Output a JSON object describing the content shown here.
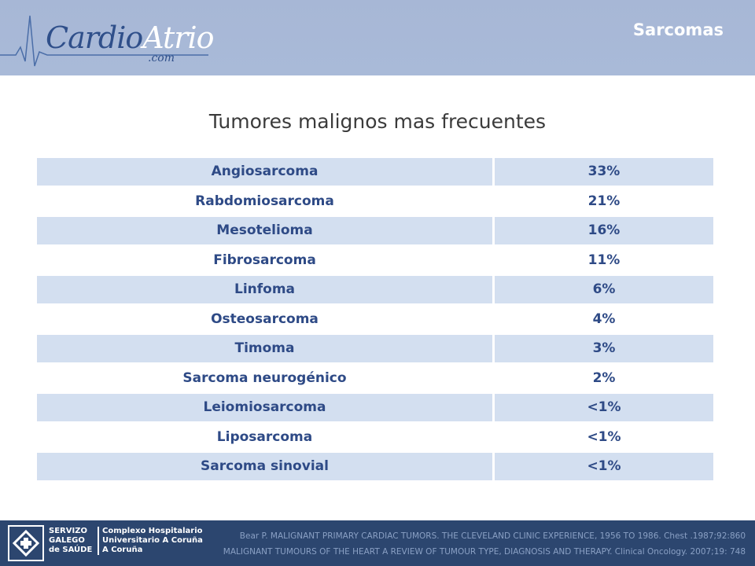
{
  "header": {
    "logo_main": "CardioAtrio",
    "logo_cardio": "Cardio",
    "logo_atrio": "Atrio",
    "logo_sub": ".com",
    "section_title": "Sarcomas"
  },
  "main": {
    "title": "Tumores malignos mas frecuentes",
    "rows": [
      {
        "name": "Angiosarcoma",
        "pct": "33%",
        "value": 33
      },
      {
        "name": "Rabdomiosarcoma",
        "pct": "21%",
        "value": 21
      },
      {
        "name": "Mesotelioma",
        "pct": "16%",
        "value": 16
      },
      {
        "name": "Fibrosarcoma",
        "pct": "11%",
        "value": 11
      },
      {
        "name": "Linfoma",
        "pct": "6%",
        "value": 6
      },
      {
        "name": "Osteosarcoma",
        "pct": "4%",
        "value": 4
      },
      {
        "name": "Timoma",
        "pct": "3%",
        "value": 3
      },
      {
        "name": "Sarcoma neurogénico",
        "pct": "2%",
        "value": 2
      },
      {
        "name": "Leiomiosarcoma",
        "pct": "<1%",
        "value": "<1"
      },
      {
        "name": "Liposarcoma",
        "pct": "<1%",
        "value": "<1"
      },
      {
        "name": "Sarcoma sinovial",
        "pct": "<1%",
        "value": "<1"
      }
    ]
  },
  "footer": {
    "org_left_1": "SERVIZO",
    "org_left_2": "GALEGO",
    "org_left_3": "de SAÚDE",
    "org_right_1": "Complexo Hospitalario",
    "org_right_2": "Universitario A Coruña",
    "org_right_3": "A Coruña",
    "ref_1": "Bear P. MALIGNANT PRIMARY CARDIAC TUMORS. THE CLEVELAND CLINIC EXPERIENCE, 1956 TO 1986. Chest .1987;92:860",
    "ref_2": "MALIGNANT TUMOURS OF THE HEART A REVIEW OF TUMOUR TYPE, DIAGNOSIS AND THERAPY. Clinical Oncology. 2007;19: 748"
  },
  "colors": {
    "header_bg": "#a7b7d6",
    "row_shade": "#d3dff0",
    "text_blue": "#2e4a86",
    "footer_bg": "#2c466f"
  }
}
